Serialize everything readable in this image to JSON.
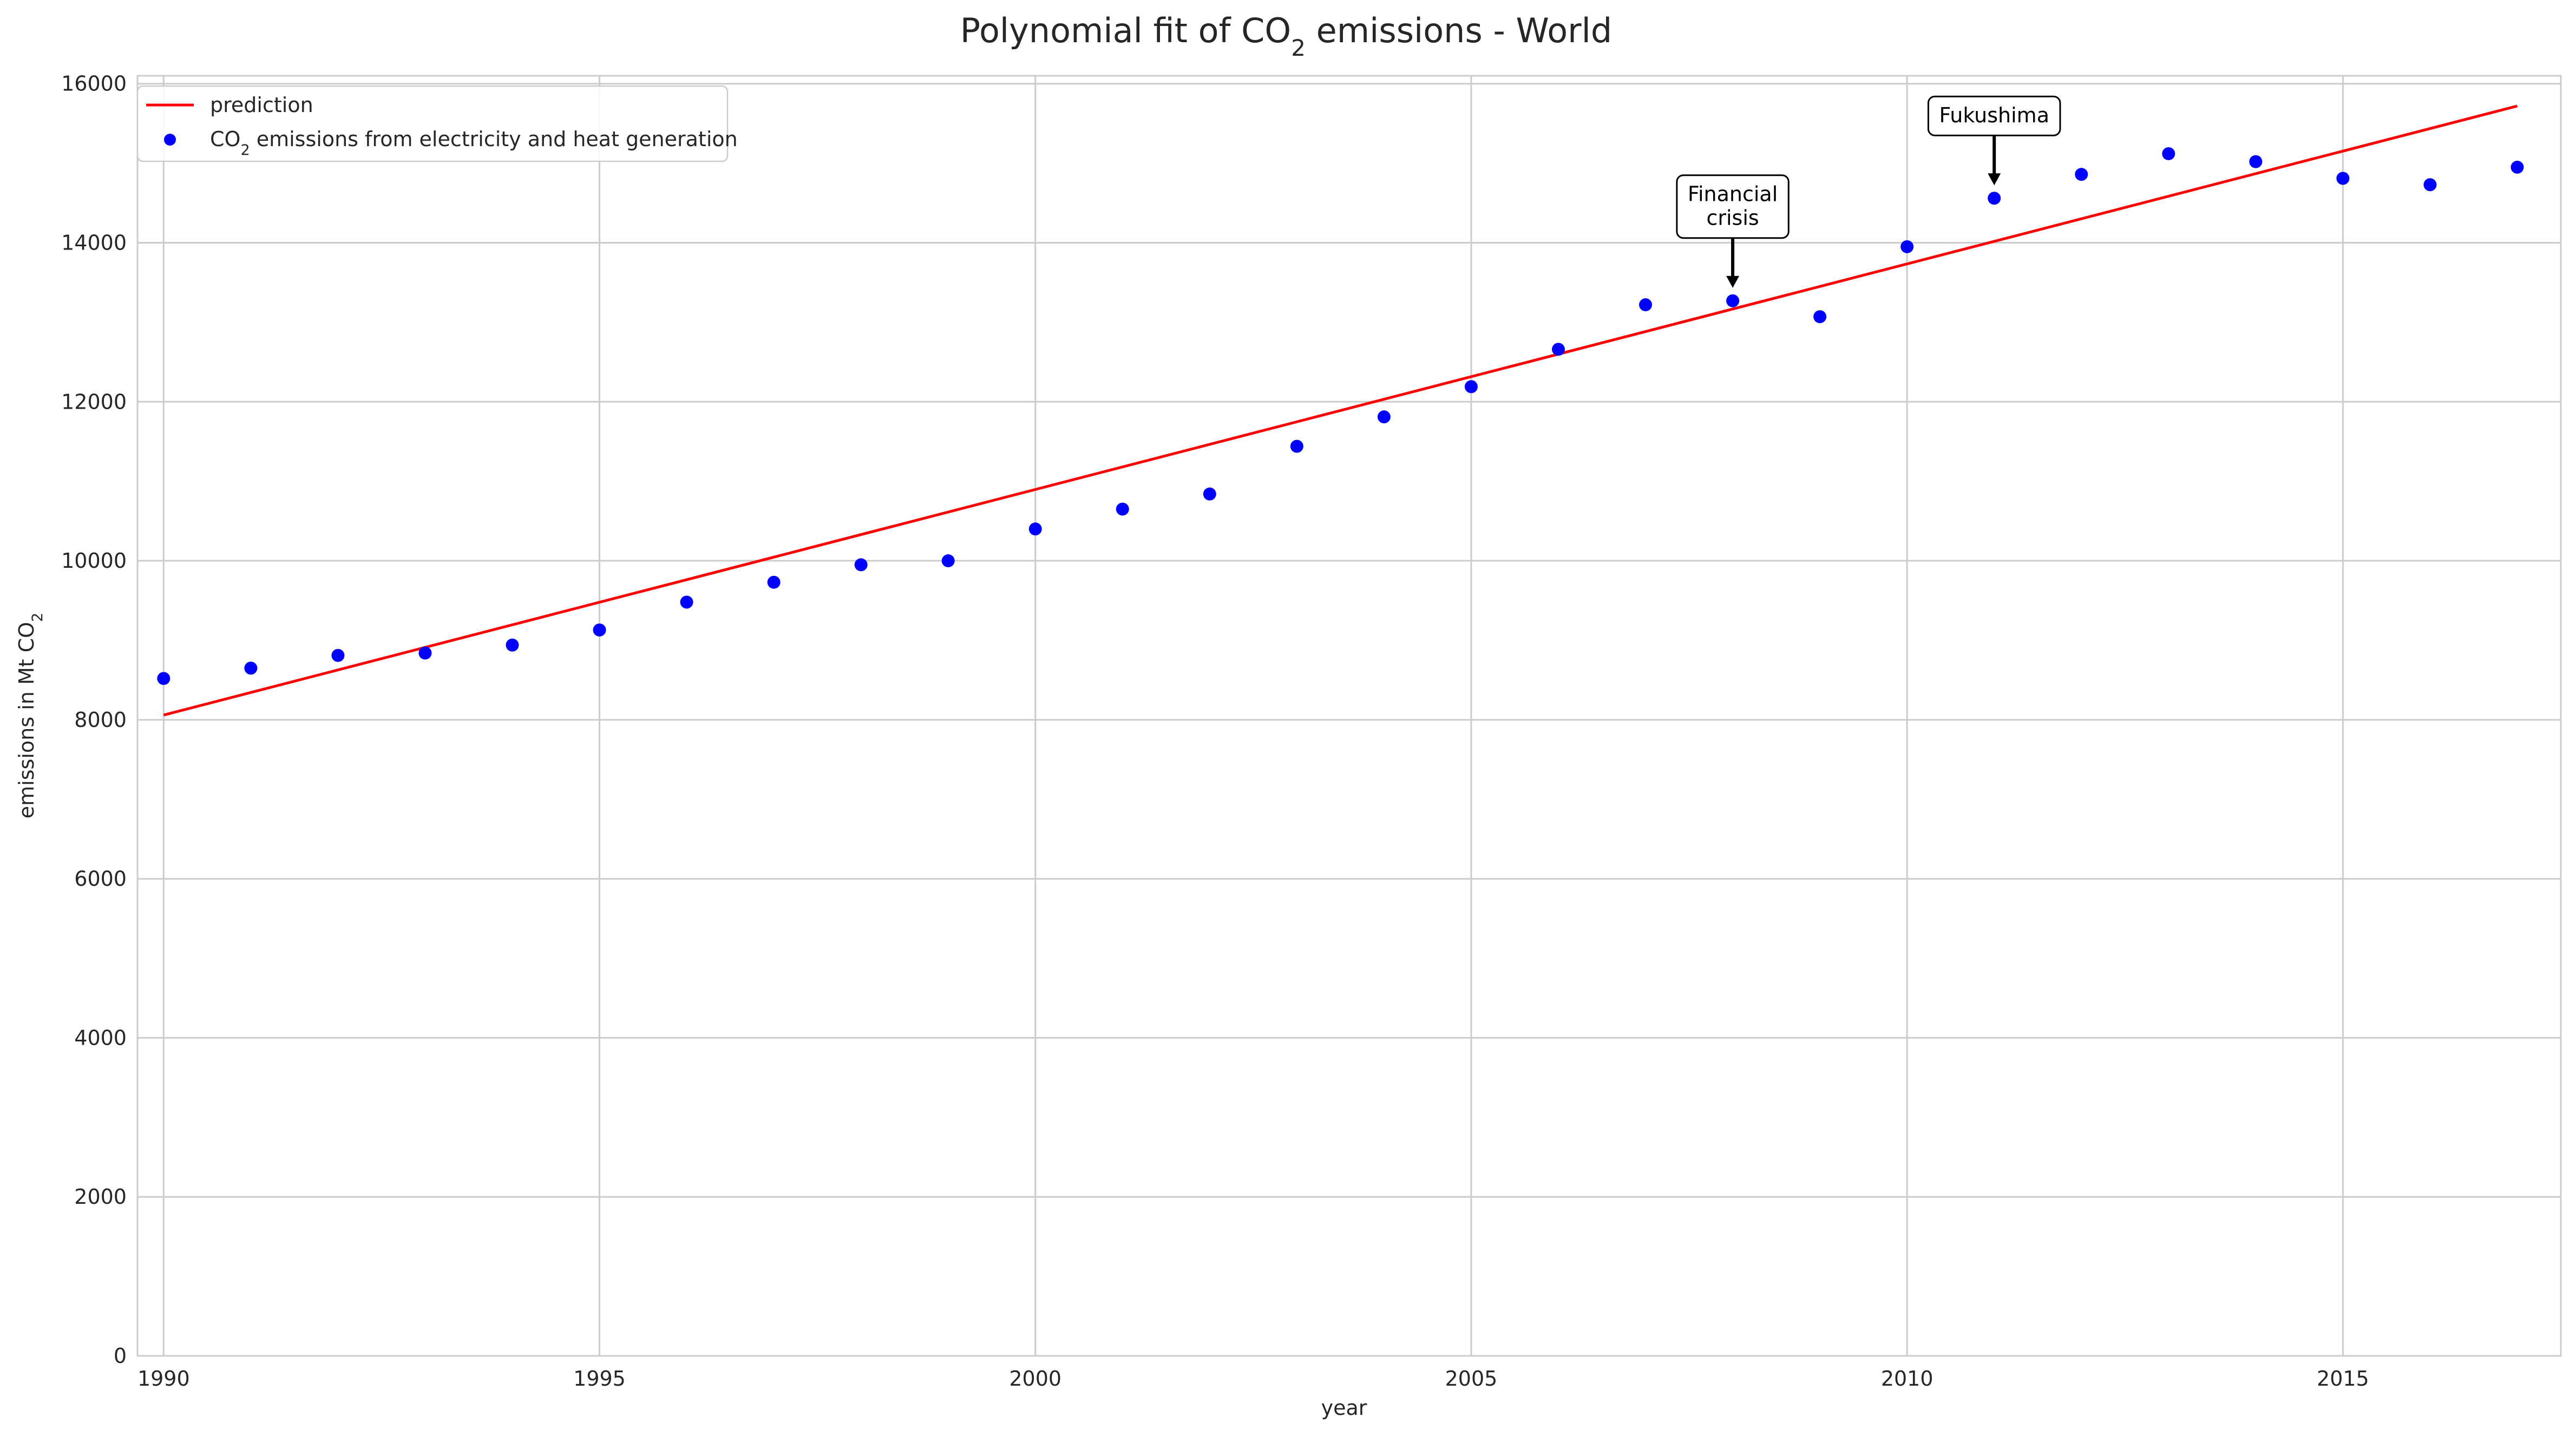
{
  "chart_data": {
    "type": "scatter",
    "title": {
      "before": "Polynomial fit of CO",
      "sub": "2",
      "after": " emissions - World"
    },
    "xlabel": "year",
    "ylabel": {
      "before": "emissions in Mt CO",
      "sub": "2"
    },
    "xlim": [
      1989.7,
      2017.5
    ],
    "ylim": [
      0,
      16100
    ],
    "x_ticks": [
      1990,
      1995,
      2000,
      2005,
      2010,
      2015
    ],
    "y_ticks": [
      0,
      2000,
      4000,
      6000,
      8000,
      10000,
      12000,
      14000,
      16000
    ],
    "grid": true,
    "legend_position": "top-left",
    "series": [
      {
        "name": "prediction",
        "kind": "line",
        "color": "#ff0000",
        "x": [
          1990,
          2017
        ],
        "y": [
          8060,
          15720
        ]
      },
      {
        "name": {
          "before": "CO",
          "sub": "2",
          "after": " emissions from electricity and heat generation"
        },
        "kind": "scatter",
        "color": "#0000ff",
        "x": [
          1990,
          1991,
          1992,
          1993,
          1994,
          1995,
          1996,
          1997,
          1998,
          1999,
          2000,
          2001,
          2002,
          2003,
          2004,
          2005,
          2006,
          2007,
          2008,
          2009,
          2010,
          2011,
          2012,
          2013,
          2014,
          2015,
          2016,
          2017
        ],
        "y": [
          8520,
          8650,
          8810,
          8840,
          8940,
          9130,
          9480,
          9730,
          9950,
          10000,
          10400,
          10650,
          10840,
          11440,
          11810,
          12190,
          12660,
          13220,
          13270,
          13070,
          13950,
          14560,
          14860,
          15120,
          15020,
          14810,
          14730,
          14950
        ]
      }
    ],
    "annotations": [
      {
        "lines": [
          "Financial",
          "crisis"
        ],
        "x": 2008,
        "y": 13270
      },
      {
        "lines": [
          "Fukushima"
        ],
        "x": 2011,
        "y": 14560
      }
    ]
  }
}
